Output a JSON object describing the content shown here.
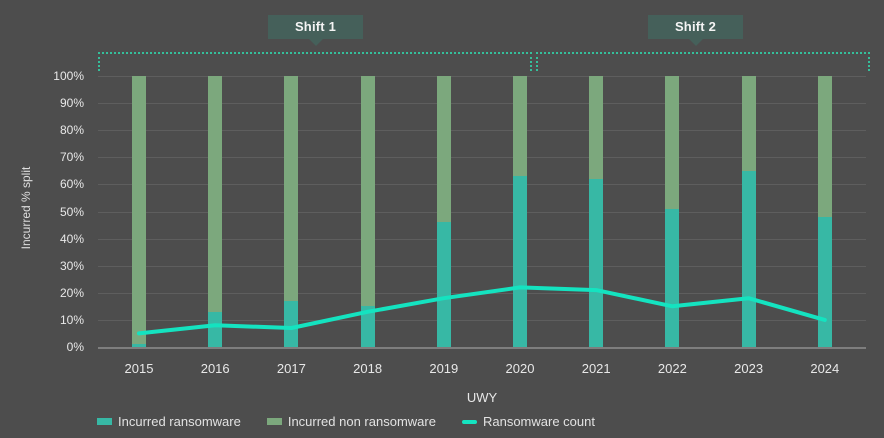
{
  "annotations": {
    "shift1": "Shift 1",
    "shift2": "Shift 2"
  },
  "colors": {
    "background": "#4d4d4d",
    "gridline": "#5e5e5e",
    "axis_line": "#7e7e7e",
    "bar_ransomware": "#37b8a5",
    "bar_non_ransomware": "#7ca87d",
    "count_line": "#14e3c0",
    "bracket": "#35bf9b",
    "annotation_box": "#45605a",
    "text": "#e8e8e8"
  },
  "legend": {
    "items": [
      {
        "label": "Incurred ransomware",
        "color": "#37b8a5",
        "marker": "square"
      },
      {
        "label": "Incurred non ransomware",
        "color": "#7ca87d",
        "marker": "square"
      },
      {
        "label": "Ransomware count",
        "color": "#14e3c0",
        "marker": "line"
      }
    ]
  },
  "chart_data": {
    "type": "bar",
    "subtype": "stacked-percent-with-line-overlay",
    "title": "",
    "xlabel": "UWY",
    "ylabel": "Incurred % split",
    "ylim": [
      0,
      100
    ],
    "grid": true,
    "legend_position": "bottom-left",
    "categories": [
      "2015",
      "2016",
      "2017",
      "2018",
      "2019",
      "2020",
      "2021",
      "2022",
      "2023",
      "2024"
    ],
    "y_ticks": [
      "0%",
      "10%",
      "20%",
      "30%",
      "40%",
      "50%",
      "60%",
      "70%",
      "80%",
      "90%",
      "100%"
    ],
    "series": [
      {
        "name": "Incurred ransomware",
        "type": "bar",
        "color": "#37b8a5",
        "values": [
          1,
          13,
          17,
          15,
          46,
          63,
          62,
          51,
          65,
          48
        ]
      },
      {
        "name": "Incurred non ransomware",
        "type": "bar",
        "color": "#7ca87d",
        "values": [
          99,
          87,
          83,
          85,
          54,
          37,
          38,
          49,
          35,
          52
        ]
      },
      {
        "name": "Ransomware count",
        "type": "line",
        "color": "#14e3c0",
        "values": [
          5,
          8,
          7,
          13,
          18,
          22,
          21,
          15,
          18,
          10
        ]
      }
    ]
  }
}
